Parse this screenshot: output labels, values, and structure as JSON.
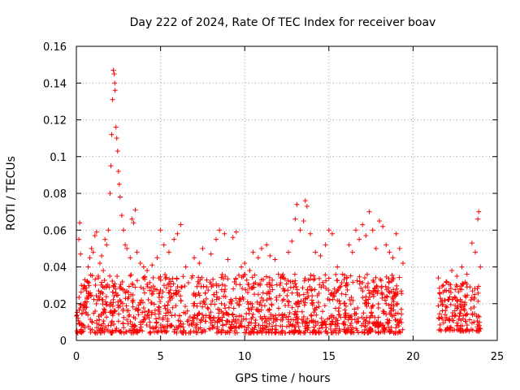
{
  "chart_data": {
    "type": "scatter",
    "title": "Day 222 of 2024, Rate Of TEC Index for receiver boav",
    "xlabel": "GPS time / hours",
    "ylabel": "ROTI / TECUs",
    "xlim": [
      0,
      25
    ],
    "ylim": [
      0,
      0.16
    ],
    "xticks": [
      0,
      5,
      10,
      15,
      20,
      25
    ],
    "xtick_labels": [
      "0",
      "5",
      "10",
      "15",
      "20",
      "25"
    ],
    "yticks": [
      0,
      0.02,
      0.04,
      0.06,
      0.08,
      0.1,
      0.12,
      0.14,
      0.16
    ],
    "ytick_labels": [
      "0",
      "0.02",
      "0.04",
      "0.06",
      "0.08",
      "0.1",
      "0.12",
      "0.14",
      "0.16"
    ],
    "grid": true,
    "marker": "+",
    "marker_color": "#ff0000",
    "series": [
      {
        "name": "ROTI",
        "points": [
          [
            0.1,
            0.012
          ],
          [
            0.15,
            0.055
          ],
          [
            0.2,
            0.064
          ],
          [
            0.25,
            0.047
          ],
          [
            0.3,
            0.03
          ],
          [
            0.4,
            0.028
          ],
          [
            0.5,
            0.033
          ],
          [
            0.6,
            0.018
          ],
          [
            0.7,
            0.04
          ],
          [
            0.8,
            0.045
          ],
          [
            0.9,
            0.05
          ],
          [
            1.0,
            0.048
          ],
          [
            1.1,
            0.057
          ],
          [
            1.2,
            0.059
          ],
          [
            1.3,
            0.035
          ],
          [
            1.4,
            0.042
          ],
          [
            1.5,
            0.046
          ],
          [
            1.6,
            0.038
          ],
          [
            1.7,
            0.055
          ],
          [
            1.8,
            0.052
          ],
          [
            1.9,
            0.06
          ],
          [
            2.0,
            0.08
          ],
          [
            2.05,
            0.095
          ],
          [
            2.1,
            0.112
          ],
          [
            2.15,
            0.131
          ],
          [
            2.2,
            0.147
          ],
          [
            2.25,
            0.145
          ],
          [
            2.28,
            0.14
          ],
          [
            2.3,
            0.136
          ],
          [
            2.35,
            0.116
          ],
          [
            2.4,
            0.11
          ],
          [
            2.45,
            0.103
          ],
          [
            2.5,
            0.092
          ],
          [
            2.55,
            0.085
          ],
          [
            2.6,
            0.078
          ],
          [
            2.7,
            0.068
          ],
          [
            2.8,
            0.06
          ],
          [
            2.9,
            0.052
          ],
          [
            3.0,
            0.05
          ],
          [
            3.2,
            0.045
          ],
          [
            3.3,
            0.066
          ],
          [
            3.4,
            0.064
          ],
          [
            3.5,
            0.071
          ],
          [
            3.6,
            0.048
          ],
          [
            3.8,
            0.042
          ],
          [
            4.0,
            0.04
          ],
          [
            4.2,
            0.038
          ],
          [
            4.5,
            0.041
          ],
          [
            4.8,
            0.045
          ],
          [
            5.0,
            0.06
          ],
          [
            5.2,
            0.052
          ],
          [
            5.5,
            0.048
          ],
          [
            5.8,
            0.055
          ],
          [
            6.0,
            0.058
          ],
          [
            6.2,
            0.063
          ],
          [
            6.5,
            0.04
          ],
          [
            7.0,
            0.045
          ],
          [
            7.3,
            0.042
          ],
          [
            7.5,
            0.05
          ],
          [
            8.0,
            0.047
          ],
          [
            8.3,
            0.055
          ],
          [
            8.5,
            0.06
          ],
          [
            8.8,
            0.058
          ],
          [
            9.0,
            0.044
          ],
          [
            9.3,
            0.056
          ],
          [
            9.5,
            0.059
          ],
          [
            9.8,
            0.04
          ],
          [
            10.0,
            0.042
          ],
          [
            10.3,
            0.038
          ],
          [
            10.5,
            0.048
          ],
          [
            10.8,
            0.045
          ],
          [
            11.0,
            0.05
          ],
          [
            11.3,
            0.052
          ],
          [
            11.5,
            0.046
          ],
          [
            11.8,
            0.044
          ],
          [
            12.0,
            0.036
          ],
          [
            12.3,
            0.034
          ],
          [
            12.6,
            0.048
          ],
          [
            12.8,
            0.054
          ],
          [
            13.0,
            0.066
          ],
          [
            13.1,
            0.074
          ],
          [
            13.3,
            0.06
          ],
          [
            13.5,
            0.065
          ],
          [
            13.6,
            0.076
          ],
          [
            13.7,
            0.073
          ],
          [
            13.9,
            0.058
          ],
          [
            14.2,
            0.048
          ],
          [
            14.5,
            0.046
          ],
          [
            14.8,
            0.052
          ],
          [
            15.0,
            0.06
          ],
          [
            15.2,
            0.058
          ],
          [
            15.5,
            0.04
          ],
          [
            15.8,
            0.036
          ],
          [
            16.0,
            0.03
          ],
          [
            16.2,
            0.052
          ],
          [
            16.4,
            0.048
          ],
          [
            16.6,
            0.06
          ],
          [
            16.8,
            0.055
          ],
          [
            17.0,
            0.063
          ],
          [
            17.2,
            0.057
          ],
          [
            17.4,
            0.07
          ],
          [
            17.6,
            0.06
          ],
          [
            17.8,
            0.05
          ],
          [
            18.0,
            0.065
          ],
          [
            18.2,
            0.062
          ],
          [
            18.4,
            0.052
          ],
          [
            18.6,
            0.048
          ],
          [
            18.8,
            0.045
          ],
          [
            19.0,
            0.058
          ],
          [
            19.2,
            0.05
          ],
          [
            19.4,
            0.042
          ],
          [
            21.5,
            0.034
          ],
          [
            21.8,
            0.03
          ],
          [
            22.0,
            0.032
          ],
          [
            22.3,
            0.038
          ],
          [
            22.6,
            0.035
          ],
          [
            22.9,
            0.04
          ],
          [
            23.2,
            0.036
          ],
          [
            23.5,
            0.053
          ],
          [
            23.7,
            0.048
          ],
          [
            23.85,
            0.066
          ],
          [
            23.9,
            0.07
          ],
          [
            24.0,
            0.04
          ]
        ],
        "dense_bands": [
          {
            "x_start": 0.0,
            "x_end": 19.4,
            "y_low": 0.004,
            "y_high": 0.036
          },
          {
            "x_start": 21.5,
            "x_end": 24.0,
            "y_low": 0.005,
            "y_high": 0.032
          }
        ]
      }
    ]
  }
}
